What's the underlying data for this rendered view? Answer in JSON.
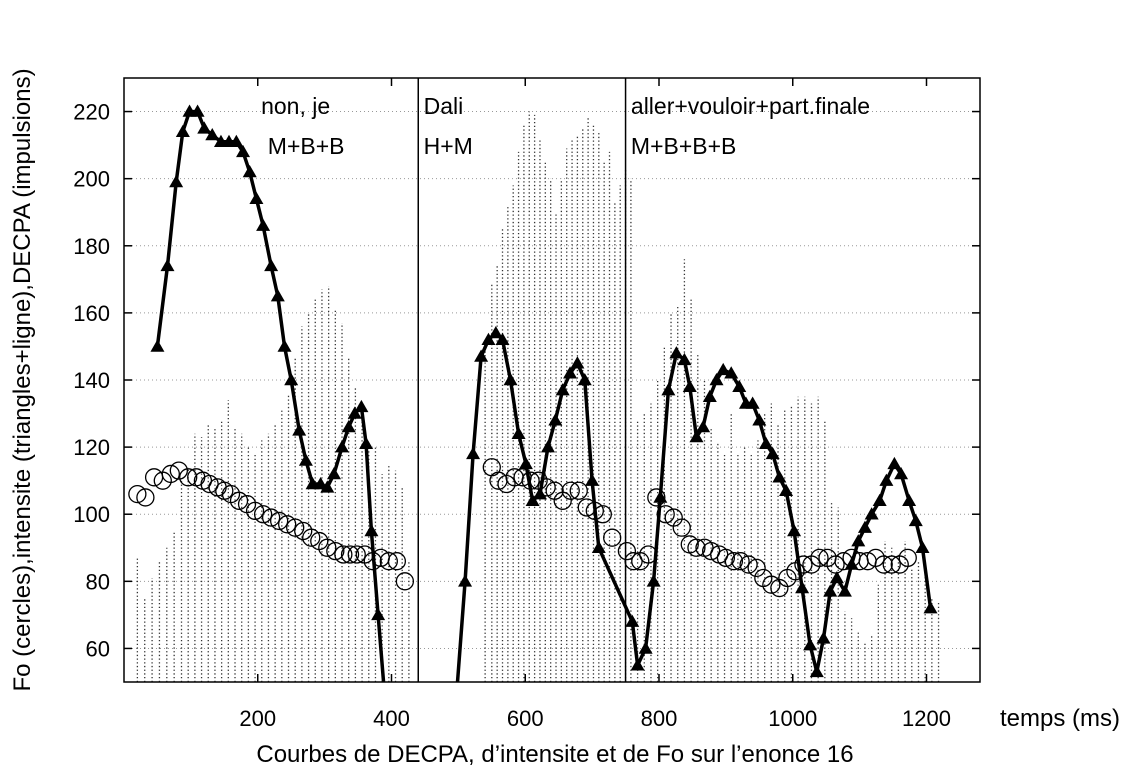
{
  "chart_data": {
    "type": "line",
    "xlabel": "temps (ms)",
    "ylabel": "Fo (cercles),intensite (triangles+ligne),DECPA (impulsions)",
    "caption": "Courbes de DECPA, d’intensite et de Fo sur l’enonce 16",
    "xlim": [
      0,
      1280
    ],
    "ylim": [
      50,
      230
    ],
    "xticks": [
      200,
      400,
      600,
      800,
      1000,
      1200
    ],
    "yticks": [
      60,
      80,
      100,
      120,
      140,
      160,
      180,
      200,
      220
    ],
    "grid": "horizontal dotted",
    "segment_boundaries": [
      440,
      750
    ],
    "annotations": [
      {
        "text": "non, je",
        "x": 205,
        "y": 222
      },
      {
        "text": "M+B+B",
        "x": 215,
        "y": 210
      },
      {
        "text": "Dali",
        "x": 448,
        "y": 222
      },
      {
        "text": "H+M",
        "x": 448,
        "y": 210
      },
      {
        "text": "aller+vouloir+part.finale",
        "x": 758,
        "y": 222
      },
      {
        "text": "M+B+B+B",
        "x": 758,
        "y": 210
      }
    ],
    "series": [
      {
        "marker": "triangle-line",
        "color": "#000000",
        "points": [
          [
            50,
            150
          ],
          [
            65,
            174
          ],
          [
            78,
            199
          ],
          [
            88,
            214
          ],
          [
            98,
            220
          ],
          [
            110,
            220
          ],
          [
            120,
            215
          ],
          [
            132,
            213
          ],
          [
            145,
            211
          ],
          [
            157,
            211
          ],
          [
            168,
            211
          ],
          [
            178,
            208
          ],
          [
            188,
            202
          ],
          [
            198,
            194
          ],
          [
            208,
            186
          ],
          [
            220,
            174
          ],
          [
            230,
            165
          ],
          [
            240,
            150
          ],
          [
            250,
            140
          ],
          [
            262,
            125
          ],
          [
            272,
            116
          ],
          [
            282,
            109
          ],
          [
            294,
            109
          ],
          [
            304,
            108
          ],
          [
            314,
            112
          ],
          [
            326,
            120
          ],
          [
            336,
            126
          ],
          [
            345,
            130
          ],
          [
            355,
            132
          ],
          [
            362,
            121
          ],
          [
            370,
            95
          ],
          [
            380,
            70
          ],
          [
            389,
            48
          ],
          [
            498,
            48
          ],
          [
            510,
            80
          ],
          [
            522,
            118
          ],
          [
            534,
            147
          ],
          [
            545,
            152
          ],
          [
            556,
            154
          ],
          [
            566,
            152
          ],
          [
            578,
            140
          ],
          [
            590,
            124
          ],
          [
            601,
            115
          ],
          [
            611,
            104
          ],
          [
            622,
            106
          ],
          [
            634,
            120
          ],
          [
            645,
            128
          ],
          [
            656,
            137
          ],
          [
            667,
            142
          ],
          [
            678,
            145
          ],
          [
            689,
            140
          ],
          [
            700,
            110
          ],
          [
            710,
            90
          ],
          [
            760,
            68
          ],
          [
            768,
            55
          ],
          [
            780,
            60
          ],
          [
            792,
            80
          ],
          [
            802,
            105
          ],
          [
            814,
            137
          ],
          [
            826,
            148
          ],
          [
            838,
            146
          ],
          [
            846,
            138
          ],
          [
            856,
            123
          ],
          [
            866,
            126
          ],
          [
            876,
            135
          ],
          [
            886,
            140
          ],
          [
            896,
            143
          ],
          [
            908,
            142
          ],
          [
            920,
            138
          ],
          [
            930,
            133
          ],
          [
            940,
            133
          ],
          [
            950,
            128
          ],
          [
            960,
            121
          ],
          [
            970,
            118
          ],
          [
            980,
            111
          ],
          [
            990,
            107
          ],
          [
            1002,
            95
          ],
          [
            1014,
            78
          ],
          [
            1026,
            61
          ],
          [
            1036,
            53
          ],
          [
            1046,
            63
          ],
          [
            1056,
            77
          ],
          [
            1066,
            81
          ],
          [
            1078,
            77
          ],
          [
            1088,
            85
          ],
          [
            1098,
            92
          ],
          [
            1108,
            96
          ],
          [
            1118,
            100
          ],
          [
            1130,
            104
          ],
          [
            1140,
            110
          ],
          [
            1152,
            115
          ],
          [
            1162,
            112
          ],
          [
            1174,
            104
          ],
          [
            1184,
            98
          ],
          [
            1194,
            90
          ],
          [
            1206,
            72
          ]
        ]
      },
      {
        "marker": "circle",
        "color": "#000000",
        "points": [
          [
            20,
            106
          ],
          [
            32,
            105
          ],
          [
            45,
            111
          ],
          [
            58,
            110
          ],
          [
            70,
            112
          ],
          [
            82,
            113
          ],
          [
            96,
            111
          ],
          [
            108,
            111
          ],
          [
            118,
            110
          ],
          [
            128,
            109
          ],
          [
            140,
            108
          ],
          [
            150,
            107
          ],
          [
            160,
            106
          ],
          [
            172,
            104
          ],
          [
            184,
            103
          ],
          [
            196,
            101
          ],
          [
            208,
            100
          ],
          [
            220,
            99
          ],
          [
            232,
            98
          ],
          [
            244,
            97
          ],
          [
            256,
            96
          ],
          [
            268,
            95
          ],
          [
            280,
            93
          ],
          [
            292,
            92
          ],
          [
            304,
            90
          ],
          [
            316,
            89
          ],
          [
            328,
            88
          ],
          [
            338,
            88
          ],
          [
            348,
            88
          ],
          [
            360,
            88
          ],
          [
            372,
            86
          ],
          [
            384,
            87
          ],
          [
            396,
            86
          ],
          [
            408,
            86
          ],
          [
            420,
            80
          ],
          [
            550,
            114
          ],
          [
            560,
            110
          ],
          [
            572,
            109
          ],
          [
            584,
            111
          ],
          [
            596,
            111
          ],
          [
            608,
            110
          ],
          [
            620,
            110
          ],
          [
            632,
            108
          ],
          [
            644,
            107
          ],
          [
            656,
            104
          ],
          [
            668,
            107
          ],
          [
            680,
            107
          ],
          [
            692,
            102
          ],
          [
            704,
            101
          ],
          [
            716,
            100
          ],
          [
            730,
            93
          ],
          [
            752,
            89
          ],
          [
            762,
            86
          ],
          [
            772,
            86
          ],
          [
            784,
            88
          ],
          [
            796,
            105
          ],
          [
            810,
            100
          ],
          [
            822,
            99
          ],
          [
            834,
            96
          ],
          [
            846,
            91
          ],
          [
            856,
            90
          ],
          [
            868,
            90
          ],
          [
            878,
            89
          ],
          [
            890,
            88
          ],
          [
            900,
            87
          ],
          [
            912,
            86
          ],
          [
            922,
            86
          ],
          [
            934,
            85
          ],
          [
            946,
            84
          ],
          [
            956,
            81
          ],
          [
            968,
            79
          ],
          [
            980,
            78
          ],
          [
            992,
            81
          ],
          [
            1004,
            83
          ],
          [
            1016,
            85
          ],
          [
            1028,
            85
          ],
          [
            1040,
            87
          ],
          [
            1052,
            87
          ],
          [
            1064,
            85
          ],
          [
            1076,
            86
          ],
          [
            1088,
            87
          ],
          [
            1100,
            86
          ],
          [
            1112,
            86
          ],
          [
            1124,
            87
          ],
          [
            1136,
            85
          ],
          [
            1148,
            85
          ],
          [
            1160,
            85
          ],
          [
            1172,
            87
          ]
        ]
      },
      {
        "marker": "dotted-bars",
        "color": "#000000",
        "points": [
          [
            20,
            87
          ],
          [
            31,
            75
          ],
          [
            42,
            81
          ],
          [
            53,
            86
          ],
          [
            64,
            90
          ],
          [
            75,
            95
          ],
          [
            86,
            110
          ],
          [
            96,
            114
          ],
          [
            106,
            124
          ],
          [
            116,
            123
          ],
          [
            126,
            127
          ],
          [
            136,
            126
          ],
          [
            146,
            128
          ],
          [
            156,
            134
          ],
          [
            166,
            126
          ],
          [
            176,
            124
          ],
          [
            186,
            120
          ],
          [
            196,
            118
          ],
          [
            206,
            122
          ],
          [
            216,
            124
          ],
          [
            226,
            127
          ],
          [
            236,
            131
          ],
          [
            246,
            136
          ],
          [
            256,
            147
          ],
          [
            266,
            156
          ],
          [
            276,
            160
          ],
          [
            286,
            164
          ],
          [
            296,
            167
          ],
          [
            306,
            168
          ],
          [
            316,
            161
          ],
          [
            326,
            157
          ],
          [
            336,
            147
          ],
          [
            346,
            138
          ],
          [
            356,
            128
          ],
          [
            366,
            120
          ],
          [
            376,
            120
          ],
          [
            386,
            112
          ],
          [
            396,
            115
          ],
          [
            406,
            113
          ],
          [
            416,
            108
          ],
          [
            426,
            86
          ],
          [
            540,
            152
          ],
          [
            550,
            169
          ],
          [
            558,
            174
          ],
          [
            566,
            185
          ],
          [
            574,
            192
          ],
          [
            582,
            198
          ],
          [
            590,
            208
          ],
          [
            598,
            216
          ],
          [
            606,
            220
          ],
          [
            614,
            219
          ],
          [
            622,
            212
          ],
          [
            630,
            205
          ],
          [
            638,
            200
          ],
          [
            646,
            190
          ],
          [
            654,
            200
          ],
          [
            662,
            209
          ],
          [
            670,
            212
          ],
          [
            678,
            213
          ],
          [
            686,
            215
          ],
          [
            694,
            218
          ],
          [
            702,
            216
          ],
          [
            710,
            214
          ],
          [
            718,
            205
          ],
          [
            726,
            208
          ],
          [
            734,
            193
          ],
          [
            742,
            198
          ],
          [
            750,
            203
          ],
          [
            758,
            200
          ],
          [
            768,
            128
          ],
          [
            778,
            130
          ],
          [
            788,
            133
          ],
          [
            798,
            140
          ],
          [
            808,
            150
          ],
          [
            818,
            160
          ],
          [
            828,
            162
          ],
          [
            838,
            176
          ],
          [
            848,
            164
          ],
          [
            858,
            148
          ],
          [
            868,
            140
          ],
          [
            878,
            126
          ],
          [
            888,
            121
          ],
          [
            898,
            118
          ],
          [
            908,
            130
          ],
          [
            918,
            118
          ],
          [
            928,
            120
          ],
          [
            938,
            118
          ],
          [
            948,
            122
          ],
          [
            958,
            130
          ],
          [
            968,
            133
          ],
          [
            978,
            127
          ],
          [
            988,
            131
          ],
          [
            998,
            132
          ],
          [
            1008,
            135
          ],
          [
            1018,
            135
          ],
          [
            1028,
            133
          ],
          [
            1038,
            135
          ],
          [
            1048,
            128
          ],
          [
            1058,
            104
          ],
          [
            1068,
            102
          ],
          [
            1078,
            71
          ],
          [
            1088,
            69
          ],
          [
            1098,
            65
          ],
          [
            1108,
            62
          ],
          [
            1118,
            64
          ],
          [
            1128,
            79
          ],
          [
            1138,
            92
          ],
          [
            1148,
            90
          ],
          [
            1158,
            88
          ],
          [
            1168,
            92
          ],
          [
            1178,
            84
          ],
          [
            1188,
            86
          ],
          [
            1198,
            85
          ],
          [
            1208,
            75
          ],
          [
            1218,
            74
          ]
        ]
      }
    ]
  }
}
